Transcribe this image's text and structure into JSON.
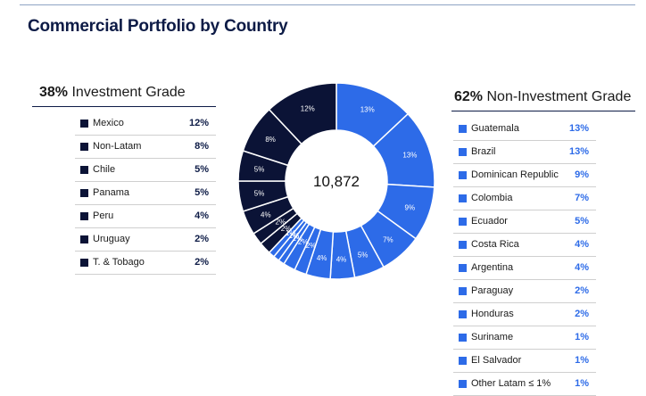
{
  "title": "Commercial Portfolio by Country",
  "investment_grade": {
    "pct": "38%",
    "label": "Investment Grade",
    "items": [
      {
        "name": "Mexico",
        "value": "12%"
      },
      {
        "name": "Non-Latam",
        "value": "8%"
      },
      {
        "name": "Chile",
        "value": "5%"
      },
      {
        "name": "Panama",
        "value": "5%"
      },
      {
        "name": "Peru",
        "value": "4%"
      },
      {
        "name": "Uruguay",
        "value": "2%"
      },
      {
        "name": "T. & Tobago",
        "value": "2%"
      }
    ]
  },
  "non_investment_grade": {
    "pct": "62%",
    "label": "Non-Investment Grade",
    "items": [
      {
        "name": "Guatemala",
        "value": "13%"
      },
      {
        "name": "Brazil",
        "value": "13%"
      },
      {
        "name": "Dominican Republic",
        "value": "9%"
      },
      {
        "name": "Colombia",
        "value": "7%"
      },
      {
        "name": "Ecuador",
        "value": "5%"
      },
      {
        "name": "Costa Rica",
        "value": "4%"
      },
      {
        "name": "Argentina",
        "value": "4%"
      },
      {
        "name": "Paraguay",
        "value": "2%"
      },
      {
        "name": "Honduras",
        "value": "2%"
      },
      {
        "name": "Suriname",
        "value": "1%"
      },
      {
        "name": "El Salvador",
        "value": "1%"
      },
      {
        "name": "Other Latam ≤ 1%",
        "value": "1%"
      }
    ]
  },
  "colors": {
    "investment": "#0b1336",
    "non_investment": "#2d6be8",
    "title": "#0d1b46"
  },
  "chart_data": {
    "type": "pie",
    "style": "donut",
    "center_label": "10,872",
    "title": "Commercial Portfolio by Country",
    "start_angle_deg": 0,
    "slices": [
      {
        "name": "Guatemala",
        "value": 13,
        "label": "13%",
        "group": "non_investment"
      },
      {
        "name": "Brazil",
        "value": 13,
        "label": "13%",
        "group": "non_investment"
      },
      {
        "name": "Dominican Republic",
        "value": 9,
        "label": "9%",
        "group": "non_investment"
      },
      {
        "name": "Colombia",
        "value": 7,
        "label": "7%",
        "group": "non_investment"
      },
      {
        "name": "Ecuador",
        "value": 5,
        "label": "5%",
        "group": "non_investment"
      },
      {
        "name": "Costa Rica",
        "value": 4,
        "label": "4%",
        "group": "non_investment"
      },
      {
        "name": "Argentina",
        "value": 4,
        "label": "4%",
        "group": "non_investment"
      },
      {
        "name": "Paraguay",
        "value": 2,
        "label": "2%",
        "group": "non_investment"
      },
      {
        "name": "Honduras",
        "value": 2,
        "label": "2%",
        "group": "non_investment"
      },
      {
        "name": "Suriname",
        "value": 1,
        "label": "1%",
        "group": "non_investment"
      },
      {
        "name": "El Salvador",
        "value": 1,
        "label": "1%",
        "group": "non_investment"
      },
      {
        "name": "Other Latam",
        "value": 1,
        "label": "1%",
        "group": "non_investment"
      },
      {
        "name": "T. & Tobago",
        "value": 2,
        "label": "2%",
        "group": "investment"
      },
      {
        "name": "Uruguay",
        "value": 2,
        "label": "2%",
        "group": "investment"
      },
      {
        "name": "Peru",
        "value": 4,
        "label": "4%",
        "group": "investment"
      },
      {
        "name": "Panama",
        "value": 5,
        "label": "5%",
        "group": "investment"
      },
      {
        "name": "Chile",
        "value": 5,
        "label": "5%",
        "group": "investment"
      },
      {
        "name": "Non-Latam",
        "value": 8,
        "label": "8%",
        "group": "investment"
      },
      {
        "name": "Mexico",
        "value": 12,
        "label": "12%",
        "group": "investment"
      }
    ]
  }
}
